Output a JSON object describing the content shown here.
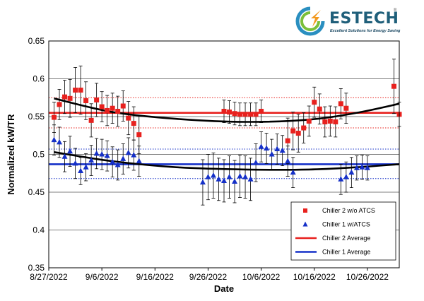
{
  "logo": {
    "brand": "ESTECH",
    "tagline": "Excellent Solutions for Energy Saving",
    "icon": "estech-swirl-logo-icon"
  },
  "chart_data": {
    "type": "scatter",
    "xlabel": "Date",
    "ylabel": "Normalized kW/TR",
    "ylim": [
      0.35,
      0.65
    ],
    "yticks": [
      0.35,
      0.4,
      0.45,
      0.5,
      0.55,
      0.6,
      0.65
    ],
    "xlim": [
      "2022-08-27",
      "2022-11-01"
    ],
    "xticks": [
      "2022-08-27",
      "2022-09-06",
      "2022-09-16",
      "2022-09-26",
      "2022-10-06",
      "2022-10-16",
      "2022-10-26"
    ],
    "xtick_labels": [
      "8/27/2022",
      "9/6/2022",
      "9/16/2022",
      "9/26/2022",
      "10/6/2022",
      "10/16/2022",
      "10/26/2022"
    ],
    "grid": "horizontal",
    "legend_position": "bottom-right",
    "series": [
      {
        "name": "Chiller 2 w/o ATCS",
        "marker": "square",
        "color": "#e8211e",
        "points": [
          [
            "2022-08-28",
            0.549,
            0.02
          ],
          [
            "2022-08-29",
            0.566,
            0.02
          ],
          [
            "2022-08-30",
            0.576,
            0.022
          ],
          [
            "2022-08-31",
            0.574,
            0.025
          ],
          [
            "2022-09-01",
            0.585,
            0.03
          ],
          [
            "2022-09-02",
            0.585,
            0.032
          ],
          [
            "2022-09-03",
            0.571,
            0.025
          ],
          [
            "2022-09-04",
            0.545,
            0.022
          ],
          [
            "2022-09-05",
            0.572,
            0.022
          ],
          [
            "2022-09-06",
            0.563,
            0.02
          ],
          [
            "2022-09-07",
            0.558,
            0.02
          ],
          [
            "2022-09-08",
            0.561,
            0.02
          ],
          [
            "2022-09-09",
            0.557,
            0.02
          ],
          [
            "2022-09-10",
            0.564,
            0.02
          ],
          [
            "2022-09-11",
            0.548,
            0.022
          ],
          [
            "2022-09-12",
            0.541,
            0.022
          ],
          [
            "2022-09-13",
            0.526,
            0.025
          ],
          [
            "2022-09-29",
            0.557,
            0.015
          ],
          [
            "2022-09-30",
            0.556,
            0.015
          ],
          [
            "2022-10-01",
            0.554,
            0.015
          ],
          [
            "2022-10-02",
            0.553,
            0.015
          ],
          [
            "2022-10-03",
            0.553,
            0.015
          ],
          [
            "2022-10-04",
            0.553,
            0.015
          ],
          [
            "2022-10-05",
            0.553,
            0.015
          ],
          [
            "2022-10-06",
            0.557,
            0.015
          ],
          [
            "2022-10-11",
            0.518,
            0.03
          ],
          [
            "2022-10-12",
            0.531,
            0.025
          ],
          [
            "2022-10-13",
            0.528,
            0.025
          ],
          [
            "2022-10-14",
            0.535,
            0.02
          ],
          [
            "2022-10-15",
            0.544,
            0.02
          ],
          [
            "2022-10-16",
            0.569,
            0.02
          ],
          [
            "2022-10-17",
            0.56,
            0.02
          ],
          [
            "2022-10-18",
            0.543,
            0.02
          ],
          [
            "2022-10-19",
            0.544,
            0.02
          ],
          [
            "2022-10-20",
            0.543,
            0.02
          ],
          [
            "2022-10-21",
            0.567,
            0.02
          ],
          [
            "2022-10-22",
            0.561,
            0.02
          ],
          [
            "2022-10-31",
            0.59,
            0.036
          ],
          [
            "2022-11-01",
            0.553,
            0.016
          ]
        ]
      },
      {
        "name": "Chiller 1 w/ATCS",
        "marker": "triangle",
        "color": "#1530c8",
        "points": [
          [
            "2022-08-28",
            0.519,
            0.02
          ],
          [
            "2022-08-29",
            0.516,
            0.02
          ],
          [
            "2022-08-30",
            0.497,
            0.02
          ],
          [
            "2022-08-31",
            0.504,
            0.02
          ],
          [
            "2022-09-01",
            0.488,
            0.02
          ],
          [
            "2022-09-02",
            0.478,
            0.018
          ],
          [
            "2022-09-03",
            0.483,
            0.018
          ],
          [
            "2022-09-04",
            0.492,
            0.02
          ],
          [
            "2022-09-05",
            0.501,
            0.02
          ],
          [
            "2022-09-06",
            0.5,
            0.02
          ],
          [
            "2022-09-07",
            0.498,
            0.02
          ],
          [
            "2022-09-08",
            0.49,
            0.02
          ],
          [
            "2022-09-09",
            0.486,
            0.02
          ],
          [
            "2022-09-10",
            0.494,
            0.02
          ],
          [
            "2022-09-11",
            0.502,
            0.02
          ],
          [
            "2022-09-12",
            0.499,
            0.02
          ],
          [
            "2022-09-13",
            0.491,
            0.02
          ],
          [
            "2022-09-25",
            0.463,
            0.03
          ],
          [
            "2022-09-26",
            0.47,
            0.03
          ],
          [
            "2022-09-27",
            0.472,
            0.03
          ],
          [
            "2022-09-28",
            0.467,
            0.028
          ],
          [
            "2022-09-29",
            0.465,
            0.028
          ],
          [
            "2022-09-30",
            0.47,
            0.028
          ],
          [
            "2022-10-01",
            0.464,
            0.028
          ],
          [
            "2022-10-02",
            0.471,
            0.028
          ],
          [
            "2022-10-03",
            0.47,
            0.028
          ],
          [
            "2022-10-04",
            0.467,
            0.028
          ],
          [
            "2022-10-05",
            0.489,
            0.025
          ],
          [
            "2022-10-06",
            0.51,
            0.02
          ],
          [
            "2022-10-07",
            0.508,
            0.02
          ],
          [
            "2022-10-08",
            0.5,
            0.02
          ],
          [
            "2022-10-09",
            0.507,
            0.02
          ],
          [
            "2022-10-10",
            0.505,
            0.02
          ],
          [
            "2022-10-11",
            0.491,
            0.02
          ],
          [
            "2022-10-12",
            0.476,
            0.02
          ],
          [
            "2022-10-21",
            0.467,
            0.02
          ],
          [
            "2022-10-22",
            0.47,
            0.02
          ],
          [
            "2022-10-23",
            0.476,
            0.02
          ],
          [
            "2022-10-24",
            0.482,
            0.016
          ],
          [
            "2022-10-25",
            0.483,
            0.016
          ],
          [
            "2022-10-26",
            0.482,
            0.016
          ]
        ]
      }
    ],
    "reference_lines": [
      {
        "name": "Chiller 2 Average",
        "y": 0.555,
        "color": "#e8211e",
        "band": [
          0.535,
          0.575
        ]
      },
      {
        "name": "Chiller 1 Average",
        "y": 0.487,
        "color": "#1530c8",
        "band": [
          0.468,
          0.507
        ]
      }
    ],
    "trend_lines": [
      {
        "color": "#000000",
        "points": [
          [
            "2022-08-28",
            0.574
          ],
          [
            "2022-09-08",
            0.556
          ],
          [
            "2022-09-20",
            0.547
          ],
          [
            "2022-10-03",
            0.543
          ],
          [
            "2022-10-15",
            0.546
          ],
          [
            "2022-10-24",
            0.555
          ],
          [
            "2022-11-01",
            0.567
          ]
        ]
      },
      {
        "color": "#000000",
        "points": [
          [
            "2022-08-28",
            0.503
          ],
          [
            "2022-09-08",
            0.491
          ],
          [
            "2022-09-20",
            0.483
          ],
          [
            "2022-10-03",
            0.48
          ],
          [
            "2022-10-15",
            0.48
          ],
          [
            "2022-10-24",
            0.483
          ],
          [
            "2022-11-01",
            0.487
          ]
        ]
      }
    ]
  }
}
